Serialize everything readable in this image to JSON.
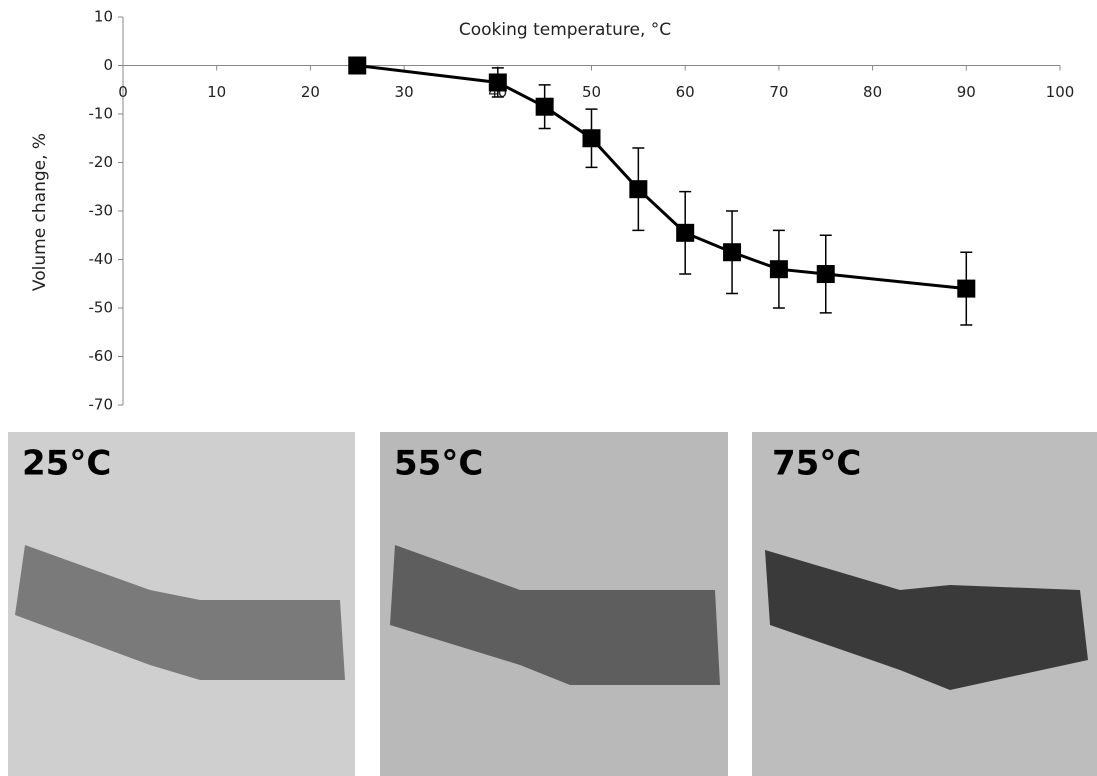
{
  "chart_data": {
    "type": "line",
    "x_label": "Cooking temperature, °C",
    "y_label": "Volume change, %",
    "x": [
      25,
      40,
      45,
      50,
      55,
      60,
      65,
      70,
      75,
      90
    ],
    "values": [
      0,
      -3.5,
      -8.5,
      -15,
      -25.5,
      -34.5,
      -38.5,
      -42,
      -43,
      -46
    ],
    "errors": [
      0,
      3,
      4.5,
      6,
      8.5,
      8.5,
      8.5,
      8,
      8,
      7.5
    ],
    "color": "#000000",
    "xlim": [
      0,
      100
    ],
    "xticks": [
      0,
      10,
      20,
      30,
      40,
      50,
      60,
      70,
      80,
      90,
      100
    ],
    "ylim": [
      -70,
      10
    ],
    "yticks": [
      10,
      0,
      -10,
      -20,
      -30,
      -40,
      -50,
      -60,
      -70
    ]
  },
  "panels": [
    {
      "label": "25°C"
    },
    {
      "label": "55°C"
    },
    {
      "label": "75°C"
    }
  ]
}
